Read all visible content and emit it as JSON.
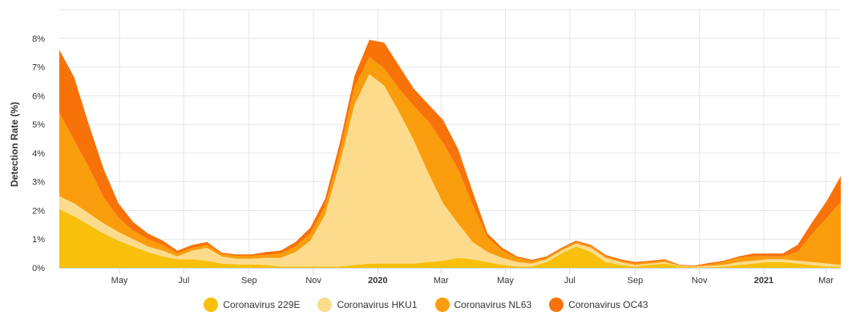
{
  "chart_data": {
    "type": "area",
    "stacked": true,
    "ylabel": "Detection Rate (%)",
    "xlabel": "",
    "ylim": [
      0,
      9
    ],
    "y_ticks": [
      0,
      1,
      2,
      3,
      4,
      5,
      6,
      7,
      8
    ],
    "y_tick_suffix": "%",
    "x_range": [
      "2019-03-05",
      "2021-03-15"
    ],
    "x_ticks": [
      {
        "date": "2019-05-01",
        "label": "May",
        "bold": false
      },
      {
        "date": "2019-07-01",
        "label": "Jul",
        "bold": false
      },
      {
        "date": "2019-09-01",
        "label": "Sep",
        "bold": false
      },
      {
        "date": "2019-11-01",
        "label": "Nov",
        "bold": false
      },
      {
        "date": "2020-01-01",
        "label": "2020",
        "bold": true
      },
      {
        "date": "2020-03-01",
        "label": "Mar",
        "bold": false
      },
      {
        "date": "2020-05-01",
        "label": "May",
        "bold": false
      },
      {
        "date": "2020-07-01",
        "label": "Jul",
        "bold": false
      },
      {
        "date": "2020-09-01",
        "label": "Sep",
        "bold": false
      },
      {
        "date": "2020-11-01",
        "label": "Nov",
        "bold": false
      },
      {
        "date": "2021-01-01",
        "label": "2021",
        "bold": true
      },
      {
        "date": "2021-03-01",
        "label": "Mar",
        "bold": false
      }
    ],
    "grid": true,
    "legend_position": "bottom-center",
    "dates": [
      "2019-03-05",
      "2019-03-19",
      "2019-04-02",
      "2019-04-16",
      "2019-04-30",
      "2019-05-14",
      "2019-05-28",
      "2019-06-11",
      "2019-06-25",
      "2019-07-09",
      "2019-07-23",
      "2019-08-06",
      "2019-08-20",
      "2019-09-03",
      "2019-09-17",
      "2019-10-01",
      "2019-10-15",
      "2019-10-29",
      "2019-11-12",
      "2019-11-26",
      "2019-12-10",
      "2019-12-24",
      "2020-01-07",
      "2020-01-21",
      "2020-02-04",
      "2020-02-18",
      "2020-03-03",
      "2020-03-17",
      "2020-03-31",
      "2020-04-14",
      "2020-04-28",
      "2020-05-12",
      "2020-05-26",
      "2020-06-09",
      "2020-06-23",
      "2020-07-07",
      "2020-07-21",
      "2020-08-04",
      "2020-08-18",
      "2020-09-01",
      "2020-09-15",
      "2020-09-29",
      "2020-10-13",
      "2020-10-27",
      "2020-11-10",
      "2020-11-24",
      "2020-12-08",
      "2020-12-22",
      "2021-01-05",
      "2021-01-19",
      "2021-02-02",
      "2021-02-16",
      "2021-03-02",
      "2021-03-15"
    ],
    "series": [
      {
        "name": "Coronavirus 229E",
        "color": "#f8bf0c",
        "values": [
          2.05,
          1.8,
          1.5,
          1.2,
          0.95,
          0.75,
          0.55,
          0.4,
          0.3,
          0.3,
          0.25,
          0.15,
          0.12,
          0.12,
          0.1,
          0.05,
          0.05,
          0.05,
          0.05,
          0.05,
          0.1,
          0.15,
          0.15,
          0.15,
          0.15,
          0.2,
          0.25,
          0.35,
          0.3,
          0.2,
          0.1,
          0.05,
          0.05,
          0.2,
          0.5,
          0.75,
          0.55,
          0.2,
          0.1,
          0.05,
          0.1,
          0.15,
          0.05,
          0.02,
          0.02,
          0.05,
          0.1,
          0.15,
          0.2,
          0.2,
          0.15,
          0.1,
          0.05,
          0.05
        ]
      },
      {
        "name": "Coronavirus HKU1",
        "color": "#fcdc8c",
        "values": [
          0.45,
          0.45,
          0.4,
          0.35,
          0.3,
          0.25,
          0.2,
          0.2,
          0.1,
          0.3,
          0.45,
          0.25,
          0.2,
          0.2,
          0.25,
          0.3,
          0.5,
          0.9,
          1.8,
          3.6,
          5.6,
          6.6,
          6.2,
          5.3,
          4.3,
          3.1,
          2.0,
          1.2,
          0.6,
          0.35,
          0.25,
          0.15,
          0.1,
          0.1,
          0.1,
          0.1,
          0.15,
          0.15,
          0.1,
          0.05,
          0.05,
          0.05,
          0.02,
          0.02,
          0.05,
          0.05,
          0.1,
          0.1,
          0.1,
          0.1,
          0.1,
          0.1,
          0.1,
          0.05
        ]
      },
      {
        "name": "Coronavirus NL63",
        "color": "#fa9d0c",
        "values": [
          2.9,
          2.2,
          1.6,
          0.9,
          0.5,
          0.3,
          0.25,
          0.2,
          0.1,
          0.1,
          0.1,
          0.08,
          0.1,
          0.1,
          0.1,
          0.15,
          0.2,
          0.25,
          0.3,
          0.4,
          0.6,
          0.6,
          0.6,
          0.8,
          1.2,
          1.8,
          2.1,
          1.9,
          1.3,
          0.5,
          0.25,
          0.15,
          0.08,
          0.05,
          0.05,
          0.05,
          0.05,
          0.05,
          0.05,
          0.05,
          0.05,
          0.05,
          0.02,
          0.02,
          0.05,
          0.1,
          0.15,
          0.15,
          0.1,
          0.1,
          0.3,
          1.0,
          1.6,
          2.2
        ]
      },
      {
        "name": "Coronavirus OC43",
        "color": "#f77309",
        "values": [
          2.2,
          2.2,
          1.5,
          1.0,
          0.5,
          0.3,
          0.2,
          0.15,
          0.1,
          0.1,
          0.1,
          0.05,
          0.05,
          0.05,
          0.1,
          0.1,
          0.15,
          0.2,
          0.25,
          0.3,
          0.4,
          0.6,
          0.9,
          0.8,
          0.6,
          0.6,
          0.8,
          0.7,
          0.45,
          0.15,
          0.1,
          0.05,
          0.05,
          0.05,
          0.05,
          0.05,
          0.05,
          0.05,
          0.05,
          0.05,
          0.05,
          0.05,
          0.02,
          0.02,
          0.05,
          0.05,
          0.05,
          0.1,
          0.1,
          0.1,
          0.25,
          0.4,
          0.6,
          0.9
        ]
      }
    ]
  }
}
